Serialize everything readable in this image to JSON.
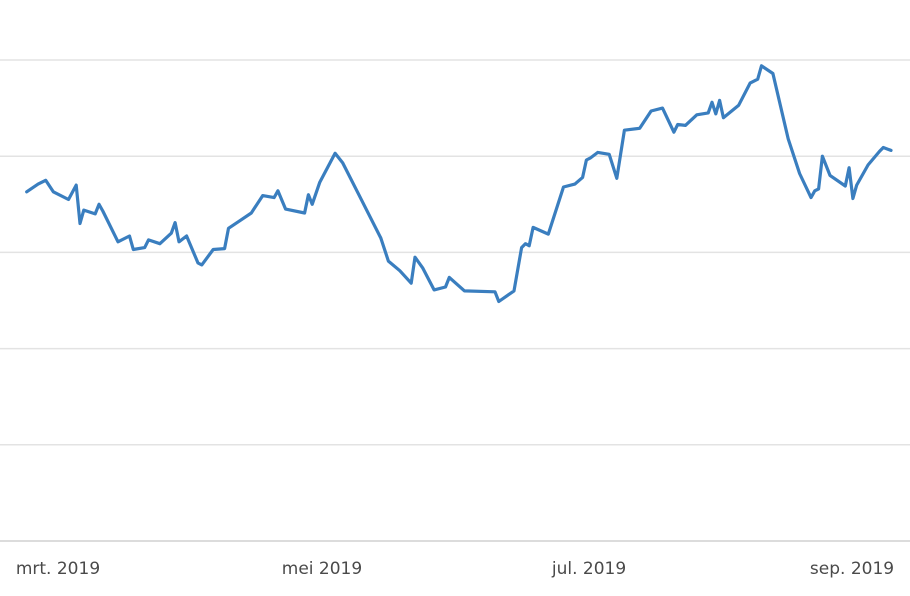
{
  "chart_data": {
    "type": "line",
    "title": "",
    "xlabel": "",
    "ylabel": "",
    "grid": true,
    "legend": "none",
    "y_tick_labels_visible": false,
    "x_tick_labels": [
      "mrt. 2019",
      "mei 2019",
      "jul. 2019",
      "sep. 2019"
    ],
    "xlim": [
      "2019-02-15",
      "2019-09-30"
    ],
    "ylim": [
      0,
      5
    ],
    "series": [
      {
        "color": "#3a7ebf",
        "points": [
          [
            "2019-02-15",
            3.63
          ],
          [
            "2019-02-18",
            3.71
          ],
          [
            "2019-02-20",
            3.75
          ],
          [
            "2019-02-22",
            3.63
          ],
          [
            "2019-02-26",
            3.55
          ],
          [
            "2019-02-28",
            3.7
          ],
          [
            "2019-03-01",
            3.3
          ],
          [
            "2019-03-02",
            3.44
          ],
          [
            "2019-03-05",
            3.4
          ],
          [
            "2019-03-06",
            3.5
          ],
          [
            "2019-03-07",
            3.43
          ],
          [
            "2019-03-11",
            3.11
          ],
          [
            "2019-03-14",
            3.17
          ],
          [
            "2019-03-15",
            3.03
          ],
          [
            "2019-03-18",
            3.05
          ],
          [
            "2019-03-19",
            3.13
          ],
          [
            "2019-03-22",
            3.09
          ],
          [
            "2019-03-25",
            3.2
          ],
          [
            "2019-03-26",
            3.31
          ],
          [
            "2019-03-27",
            3.11
          ],
          [
            "2019-03-29",
            3.17
          ],
          [
            "2019-04-01",
            2.89
          ],
          [
            "2019-04-02",
            2.87
          ],
          [
            "2019-04-05",
            3.03
          ],
          [
            "2019-04-08",
            3.04
          ],
          [
            "2019-04-09",
            3.25
          ],
          [
            "2019-04-12",
            3.33
          ],
          [
            "2019-04-15",
            3.41
          ],
          [
            "2019-04-18",
            3.59
          ],
          [
            "2019-04-21",
            3.57
          ],
          [
            "2019-04-22",
            3.64
          ],
          [
            "2019-04-24",
            3.45
          ],
          [
            "2019-04-29",
            3.41
          ],
          [
            "2019-04-30",
            3.6
          ],
          [
            "2019-05-01",
            3.5
          ],
          [
            "2019-05-03",
            3.73
          ],
          [
            "2019-05-07",
            4.03
          ],
          [
            "2019-05-09",
            3.93
          ],
          [
            "2019-05-13",
            3.62
          ],
          [
            "2019-05-19",
            3.15
          ],
          [
            "2019-05-21",
            2.91
          ],
          [
            "2019-05-24",
            2.81
          ],
          [
            "2019-05-27",
            2.68
          ],
          [
            "2019-05-28",
            2.95
          ],
          [
            "2019-05-30",
            2.84
          ],
          [
            "2019-06-02",
            2.61
          ],
          [
            "2019-06-05",
            2.64
          ],
          [
            "2019-06-06",
            2.74
          ],
          [
            "2019-06-10",
            2.6
          ],
          [
            "2019-06-18",
            2.59
          ],
          [
            "2019-06-19",
            2.49
          ],
          [
            "2019-06-23",
            2.6
          ],
          [
            "2019-06-25",
            3.05
          ],
          [
            "2019-06-26",
            3.09
          ],
          [
            "2019-06-27",
            3.07
          ],
          [
            "2019-06-28",
            3.26
          ],
          [
            "2019-07-02",
            3.19
          ],
          [
            "2019-07-06",
            3.68
          ],
          [
            "2019-07-09",
            3.71
          ],
          [
            "2019-07-11",
            3.78
          ],
          [
            "2019-07-12",
            3.96
          ],
          [
            "2019-07-13",
            3.98
          ],
          [
            "2019-07-15",
            4.04
          ],
          [
            "2019-07-18",
            4.02
          ],
          [
            "2019-07-20",
            3.77
          ],
          [
            "2019-07-22",
            4.27
          ],
          [
            "2019-07-26",
            4.29
          ],
          [
            "2019-07-29",
            4.47
          ],
          [
            "2019-08-01",
            4.5
          ],
          [
            "2019-08-04",
            4.25
          ],
          [
            "2019-08-05",
            4.33
          ],
          [
            "2019-08-07",
            4.32
          ],
          [
            "2019-08-10",
            4.43
          ],
          [
            "2019-08-13",
            4.45
          ],
          [
            "2019-08-14",
            4.56
          ],
          [
            "2019-08-15",
            4.44
          ],
          [
            "2019-08-16",
            4.58
          ],
          [
            "2019-08-17",
            4.4
          ],
          [
            "2019-08-21",
            4.53
          ],
          [
            "2019-08-24",
            4.76
          ],
          [
            "2019-08-26",
            4.8
          ],
          [
            "2019-08-27",
            4.94
          ],
          [
            "2019-08-30",
            4.86
          ],
          [
            "2019-09-03",
            4.18
          ],
          [
            "2019-09-06",
            3.82
          ],
          [
            "2019-09-09",
            3.57
          ],
          [
            "2019-09-10",
            3.64
          ],
          [
            "2019-09-11",
            3.66
          ],
          [
            "2019-09-12",
            4.0
          ],
          [
            "2019-09-14",
            3.8
          ],
          [
            "2019-09-18",
            3.69
          ],
          [
            "2019-09-19",
            3.88
          ],
          [
            "2019-09-20",
            3.56
          ],
          [
            "2019-09-21",
            3.7
          ],
          [
            "2019-09-24",
            3.91
          ],
          [
            "2019-09-27",
            4.05
          ],
          [
            "2019-09-28",
            4.09
          ],
          [
            "2019-09-30",
            4.06
          ]
        ]
      }
    ]
  }
}
